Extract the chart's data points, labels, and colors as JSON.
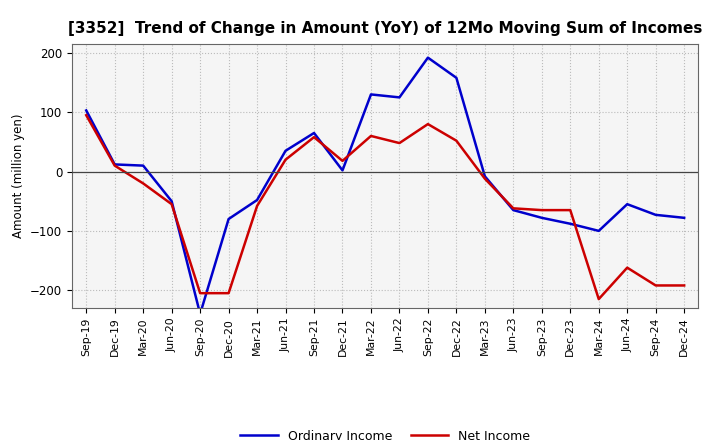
{
  "title": "[3352]  Trend of Change in Amount (YoY) of 12Mo Moving Sum of Incomes",
  "ylabel": "Amount (million yen)",
  "xlabels": [
    "Sep-19",
    "Dec-19",
    "Mar-20",
    "Jun-20",
    "Sep-20",
    "Dec-20",
    "Mar-21",
    "Jun-21",
    "Sep-21",
    "Dec-21",
    "Mar-22",
    "Jun-22",
    "Sep-22",
    "Dec-22",
    "Mar-23",
    "Jun-23",
    "Sep-23",
    "Dec-23",
    "Mar-24",
    "Jun-24",
    "Sep-24",
    "Dec-24"
  ],
  "ordinary_income": [
    103,
    12,
    10,
    -50,
    -240,
    -80,
    -48,
    35,
    65,
    2,
    130,
    125,
    192,
    158,
    -8,
    -65,
    -78,
    -88,
    -100,
    -55,
    -73,
    -78
  ],
  "net_income": [
    95,
    10,
    -20,
    -55,
    -205,
    -205,
    -58,
    20,
    58,
    18,
    60,
    48,
    80,
    52,
    -12,
    -62,
    -65,
    -65,
    -215,
    -162,
    -192,
    -192
  ],
  "ordinary_income_color": "#0000cc",
  "net_income_color": "#cc0000",
  "ylim": [
    -230,
    215
  ],
  "yticks": [
    -200,
    -100,
    0,
    100,
    200
  ],
  "background_color": "#ffffff",
  "plot_bg_color": "#f5f5f5",
  "grid_color": "#bbbbbb",
  "legend_labels": [
    "Ordinary Income",
    "Net Income"
  ]
}
